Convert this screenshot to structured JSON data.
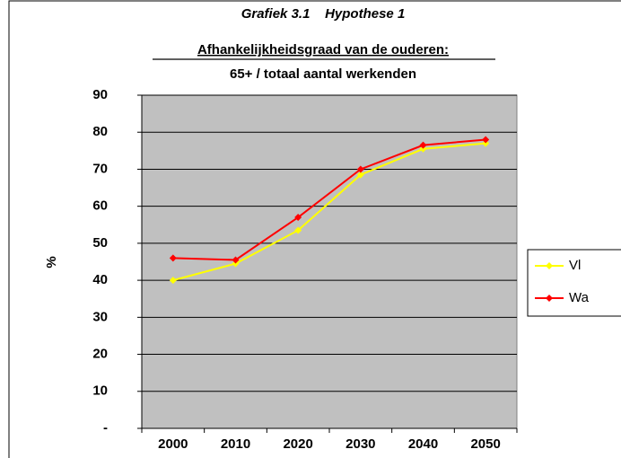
{
  "chart_data": {
    "type": "line",
    "title": "Grafiek 3.1    Hypothese 1",
    "subtitle": "Afhankelijkheidsgraad van de ouderen:",
    "subtitle2": "65+ / totaal aantal werkenden",
    "y_label": "%",
    "categories": [
      "2000",
      "2010",
      "2020",
      "2030",
      "2040",
      "2050"
    ],
    "series": [
      {
        "name": "Vl",
        "color": "#ffff00",
        "values": [
          40,
          44.5,
          53.5,
          68.5,
          75.5,
          77
        ]
      },
      {
        "name": "Wa",
        "color": "#ff0000",
        "values": [
          46,
          45.5,
          57,
          70,
          76.5,
          78
        ]
      }
    ],
    "ylim": [
      0,
      90
    ],
    "yticks": [
      {
        "value": 0,
        "label": "-"
      },
      10,
      20,
      30,
      40,
      50,
      60,
      70,
      80,
      90
    ],
    "grid": true,
    "legend": "right",
    "plot_background": "#c0c0c0"
  }
}
